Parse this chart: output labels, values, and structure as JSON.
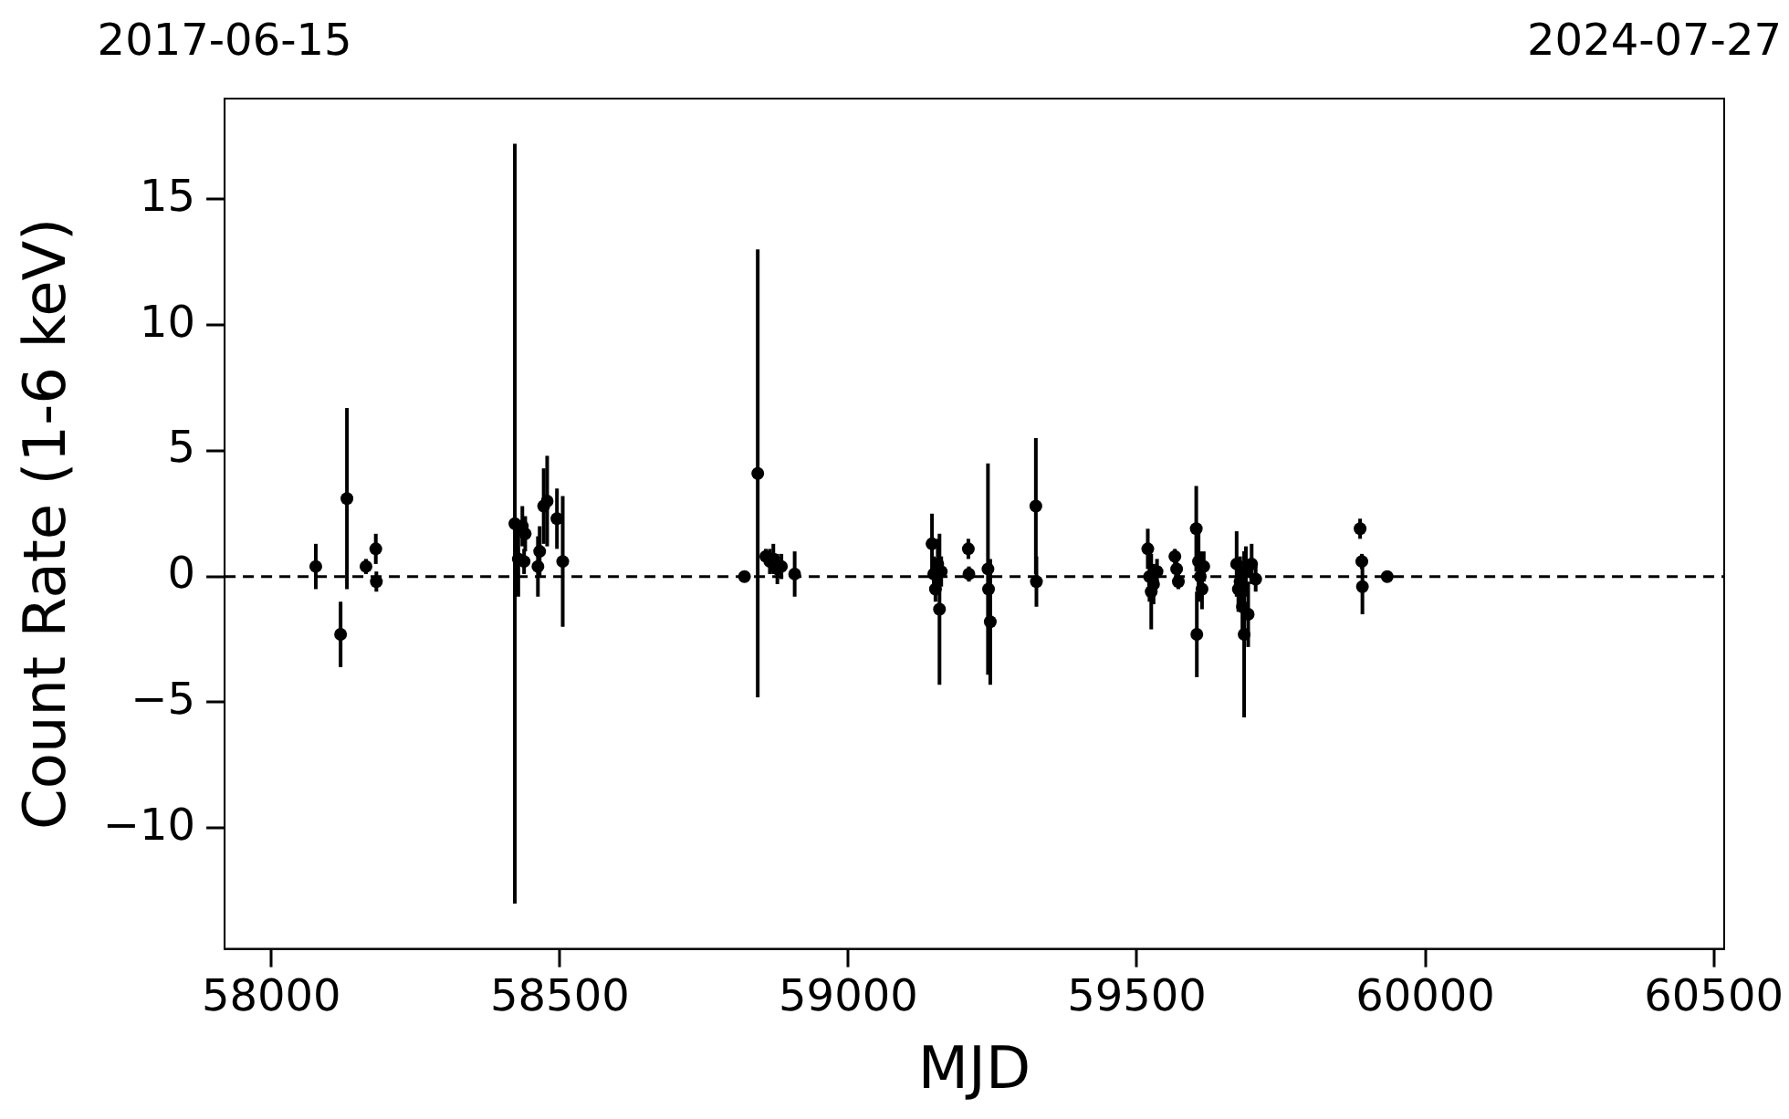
{
  "chart_data": {
    "type": "scatter",
    "xlabel": "MJD",
    "ylabel": "Count Rate (1-6 keV)",
    "xlim": [
      57919,
      60518
    ],
    "xticks": [
      58000,
      58500,
      59000,
      59500,
      60000,
      60500
    ],
    "annotations": [
      "2017-06-15",
      "2024-07-27"
    ],
    "ylim": [
      -14.8,
      19
    ],
    "yticks": [
      -10,
      -5,
      0,
      5,
      10,
      15
    ],
    "grid": false,
    "legend": false,
    "marker": "circle",
    "ref_lines": [
      {
        "axis": "y",
        "value": 0,
        "color": "#000000",
        "line_style": "dashed"
      }
    ],
    "series": [
      {
        "color": "#000000",
        "x": [
          58077,
          58120,
          58131,
          58164,
          58181,
          58182,
          58422,
          58428,
          58435,
          58440,
          58438,
          58462,
          58465,
          58472,
          58478,
          58495,
          58505,
          58820,
          58843,
          58857,
          58864,
          58870,
          58877,
          58884,
          58907,
          59145,
          59148,
          59151,
          59155,
          59158,
          59161,
          59208,
          59209,
          59242,
          59243,
          59246,
          59325,
          59326,
          59519,
          59522,
          59525,
          59529,
          59535,
          59566,
          59569,
          59572,
          59603,
          59604,
          59607,
          59610,
          59613,
          59616,
          59673,
          59676,
          59679,
          59683,
          59686,
          59689,
          59693,
          59699,
          59706,
          59887,
          59890,
          59891,
          59934
        ],
        "values": [
          0.4,
          -2.3,
          3.1,
          0.4,
          1.1,
          -0.2,
          2.1,
          0.7,
          2.0,
          1.7,
          0.6,
          0.4,
          1.0,
          2.8,
          3.0,
          2.3,
          0.6,
          0.0,
          4.1,
          0.8,
          0.6,
          0.7,
          0.3,
          0.4,
          0.1,
          1.3,
          0.1,
          -0.5,
          0.5,
          -1.3,
          0.2,
          1.1,
          0.1,
          0.3,
          -0.5,
          -1.8,
          2.8,
          -0.2,
          1.1,
          0.0,
          -0.6,
          -0.3,
          0.2,
          0.8,
          0.3,
          -0.2,
          1.9,
          -2.3,
          0.6,
          0.0,
          -0.5,
          0.4,
          0.5,
          -0.5,
          -0.2,
          -1.2,
          -2.3,
          0.2,
          -1.5,
          0.5,
          -0.1,
          1.9,
          0.6,
          -0.4,
          0.0
        ],
        "errors": [
          0.9,
          1.3,
          3.6,
          0.3,
          0.6,
          0.4,
          15.1,
          1.5,
          0.8,
          0.7,
          0.5,
          1.2,
          1.0,
          1.5,
          1.8,
          1.2,
          2.6,
          0.1,
          8.9,
          0.3,
          0.5,
          0.6,
          0.6,
          0.5,
          0.9,
          1.2,
          0.7,
          0.5,
          1.0,
          3.0,
          0.6,
          0.4,
          0.3,
          4.2,
          1.0,
          2.5,
          2.7,
          1.0,
          0.8,
          1.0,
          1.5,
          0.8,
          0.5,
          0.3,
          0.4,
          0.3,
          1.7,
          1.7,
          1.5,
          1.0,
          0.8,
          0.6,
          1.3,
          0.9,
          1.0,
          1.0,
          3.3,
          1.0,
          1.3,
          0.8,
          0.5,
          0.4,
          0.3,
          1.1,
          0.1
        ]
      }
    ]
  }
}
